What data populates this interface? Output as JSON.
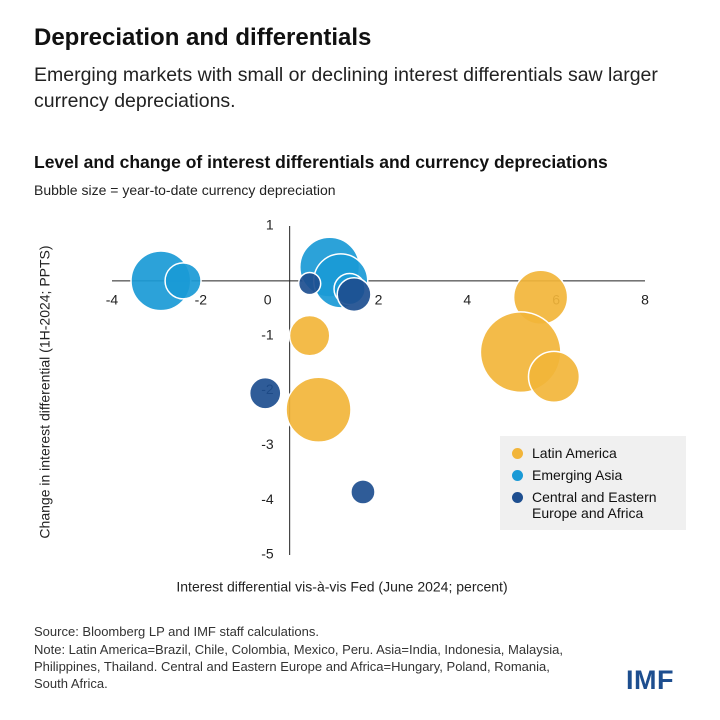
{
  "chart_data": {
    "type": "bubble",
    "title": "Depreciation and differentials",
    "subtitle": "Emerging markets with small or declining interest differentials saw larger currency depreciations.",
    "chart_title": "Level and change of interest differentials and currency depreciations",
    "size_note": "Bubble size = year-to-date currency depreciation",
    "x_label": "Interest differential vis-à-vis Fed (June 2024; percent)",
    "y_label": "Change in interest differential (1H-2024; PPTS)",
    "xlim": [
      -4,
      8
    ],
    "xticks": [
      -4,
      -2,
      0,
      2,
      4,
      6,
      8
    ],
    "ylim": [
      -5,
      1
    ],
    "yticks": [
      -5,
      -4,
      -3,
      -2,
      -1,
      1
    ],
    "legend": "lower right",
    "series": [
      {
        "name": "Latin America",
        "color": "#f2b53a",
        "x": [
          5.65,
          5.2,
          5.95,
          0.45,
          0.65
        ],
        "values": [
          -0.3,
          -1.3,
          -1.75,
          -1.0,
          -2.35
        ],
        "sizes": [
          9,
          20,
          8,
          5,
          13
        ]
      },
      {
        "name": "Emerging Asia",
        "color": "#1a9ad6",
        "x": [
          -2.9,
          -2.4,
          0.9,
          1.15,
          1.35
        ],
        "values": [
          0.0,
          0.0,
          0.25,
          0.0,
          -0.15
        ],
        "sizes": [
          11,
          4,
          11,
          9,
          3
        ]
      },
      {
        "name": "Central and Eastern Europe and Africa",
        "color": "#1d4e8f",
        "x": [
          0.45,
          1.45,
          -0.55,
          1.65
        ],
        "values": [
          -0.05,
          -0.25,
          -2.05,
          -3.85
        ],
        "sizes": [
          1.5,
          3.5,
          3,
          1.8
        ]
      }
    ],
    "source": "Source: Bloomberg LP and IMF staff calculations.",
    "note": "Note: Latin America=Brazil, Chile, Colombia, Mexico, Peru. Asia=India, Indonesia, Malaysia, Philippines, Thailand. Central and Eastern Europe and Africa=Hungary, Poland, Romania, South Africa.",
    "logo": "IMF"
  }
}
